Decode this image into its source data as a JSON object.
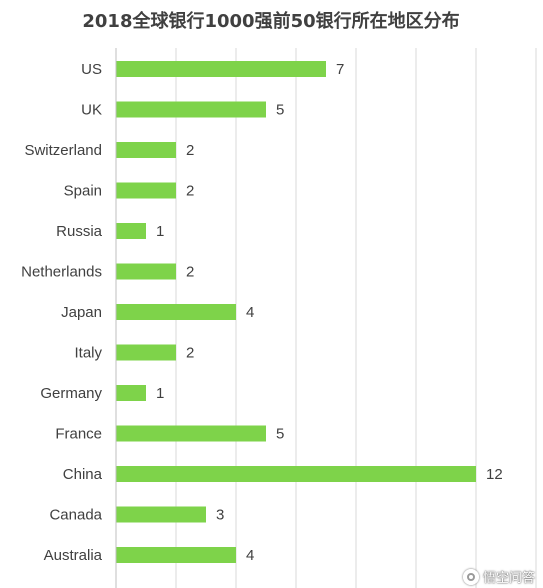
{
  "chart_data": {
    "type": "bar",
    "orientation": "horizontal",
    "title": "2018全球银行1000强前50银行所在地区分布",
    "categories": [
      "US",
      "UK",
      "Switzerland",
      "Spain",
      "Russia",
      "Netherlands",
      "Japan",
      "Italy",
      "Germany",
      "France",
      "China",
      "Canada",
      "Australia"
    ],
    "values": [
      7,
      5,
      2,
      2,
      1,
      2,
      4,
      2,
      1,
      5,
      12,
      3,
      4
    ],
    "xlim": [
      0,
      14
    ],
    "grid": true,
    "bar_color": "#7ed34a",
    "data_labels": true
  },
  "watermark": {
    "text": "悟空问答",
    "icon": "wukong-logo-icon"
  }
}
